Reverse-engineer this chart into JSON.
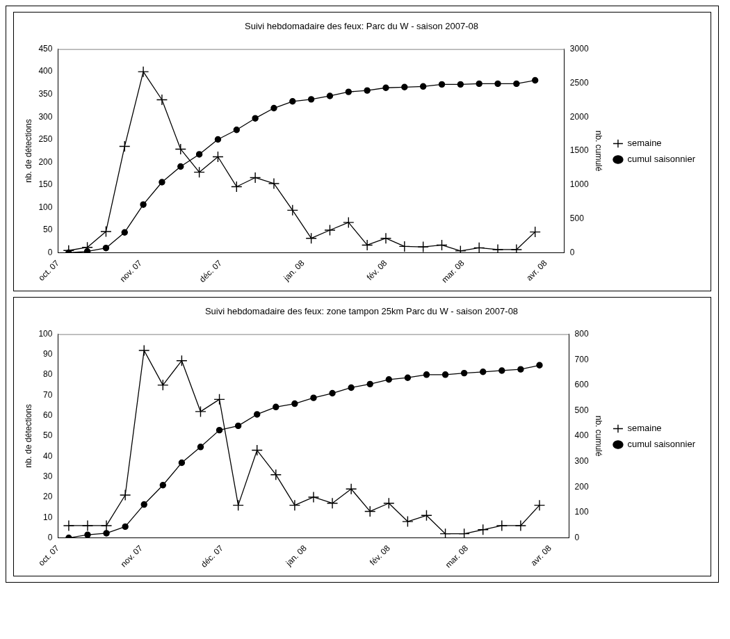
{
  "chart_data": [
    {
      "type": "line",
      "title": "Suivi hebdomadaire des feux: Parc du W - saison 2007-08",
      "ylabel": "nb. de détections",
      "y2label": "nb. cumulé",
      "x": [
        "2007-10-05",
        "2007-10-12",
        "2007-10-19",
        "2007-10-26",
        "2007-11-02",
        "2007-11-09",
        "2007-11-16",
        "2007-11-23",
        "2007-11-30",
        "2007-12-07",
        "2007-12-14",
        "2007-12-21",
        "2007-12-28",
        "2008-01-04",
        "2008-01-11",
        "2008-01-18",
        "2008-01-25",
        "2008-02-01",
        "2008-02-08",
        "2008-02-15",
        "2008-02-22",
        "2008-02-29",
        "2008-03-07",
        "2008-03-14",
        "2008-03-21",
        "2008-03-28"
      ],
      "xlim": [
        "2007-10-01",
        "2008-04-08"
      ],
      "xticks": [
        {
          "value": "2007-10-01",
          "label": "oct. 07"
        },
        {
          "value": "2007-11-01",
          "label": "nov. 07"
        },
        {
          "value": "2007-12-01",
          "label": "déc. 07"
        },
        {
          "value": "2008-01-01",
          "label": "jan. 08"
        },
        {
          "value": "2008-02-01",
          "label": "fév. 08"
        },
        {
          "value": "2008-03-01",
          "label": "mar. 08"
        },
        {
          "value": "2008-04-01",
          "label": "avr. 08"
        }
      ],
      "ylim": [
        0,
        450
      ],
      "yticks": [
        0,
        50,
        100,
        150,
        200,
        250,
        300,
        350,
        400,
        450
      ],
      "y2lim": [
        0,
        3000
      ],
      "y2ticks": [
        0,
        500,
        1000,
        1500,
        2000,
        2500,
        3000
      ],
      "grid": false,
      "legend": "right",
      "line_style": "solid",
      "series": [
        {
          "name": "semaine",
          "color": "#000000",
          "marker": "cross",
          "values": [
            5,
            12,
            47,
            235,
            400,
            338,
            229,
            178,
            212,
            146,
            166,
            153,
            94,
            32,
            50,
            67,
            17,
            32,
            14,
            13,
            17,
            4,
            11,
            7,
            7,
            46
          ]
        },
        {
          "name": "cumul saisonnier",
          "color": "#000000",
          "marker": "circle",
          "axis": "y2",
          "values": [
            0,
            20,
            70,
            300,
            710,
            1040,
            1270,
            1450,
            1670,
            1810,
            1980,
            2130,
            2230,
            2260,
            2310,
            2370,
            2390,
            2430,
            2440,
            2450,
            2480,
            2480,
            2490,
            2490,
            2490,
            2540
          ]
        }
      ]
    },
    {
      "type": "line",
      "title": "Suivi hebdomadaire des feux: zone tampon 25km Parc du W - saison 2007-08",
      "ylabel": "nb. de détections",
      "y2label": "nb. cumulé",
      "x": [
        "2007-10-05",
        "2007-10-12",
        "2007-10-19",
        "2007-10-26",
        "2007-11-02",
        "2007-11-09",
        "2007-11-16",
        "2007-11-23",
        "2007-11-30",
        "2007-12-07",
        "2007-12-14",
        "2007-12-21",
        "2007-12-28",
        "2008-01-04",
        "2008-01-11",
        "2008-01-18",
        "2008-01-25",
        "2008-02-01",
        "2008-02-08",
        "2008-02-15",
        "2008-02-22",
        "2008-02-29",
        "2008-03-07",
        "2008-03-14",
        "2008-03-21",
        "2008-03-28"
      ],
      "xlim": [
        "2007-10-01",
        "2008-04-08"
      ],
      "xticks": [
        {
          "value": "2007-10-01",
          "label": "oct. 07"
        },
        {
          "value": "2007-11-01",
          "label": "nov. 07"
        },
        {
          "value": "2007-12-01",
          "label": "déc. 07"
        },
        {
          "value": "2008-01-01",
          "label": "jan. 08"
        },
        {
          "value": "2008-02-01",
          "label": "fév. 08"
        },
        {
          "value": "2008-03-01",
          "label": "mar. 08"
        },
        {
          "value": "2008-04-01",
          "label": "avr. 08"
        }
      ],
      "ylim": [
        0,
        100
      ],
      "yticks": [
        0,
        10,
        20,
        30,
        40,
        50,
        60,
        70,
        80,
        90,
        100
      ],
      "y2lim": [
        0,
        800
      ],
      "y2ticks": [
        0,
        100,
        200,
        300,
        400,
        500,
        600,
        700,
        800
      ],
      "grid": false,
      "legend": "right",
      "line_style": "solid",
      "series": [
        {
          "name": "semaine",
          "color": "#000000",
          "marker": "cross",
          "values": [
            6,
            6,
            6,
            21,
            92,
            75,
            87,
            62,
            68,
            16,
            43,
            31,
            16,
            20,
            17,
            24,
            13,
            17,
            8,
            11,
            2,
            2,
            4,
            6,
            6,
            16
          ]
        },
        {
          "name": "cumul saisonnier",
          "color": "#000000",
          "marker": "circle",
          "axis": "y2",
          "values": [
            0,
            12,
            18,
            44,
            131,
            207,
            295,
            357,
            423,
            440,
            485,
            514,
            527,
            550,
            568,
            590,
            604,
            622,
            629,
            641,
            641,
            647,
            652,
            657,
            662,
            678
          ]
        }
      ]
    }
  ]
}
